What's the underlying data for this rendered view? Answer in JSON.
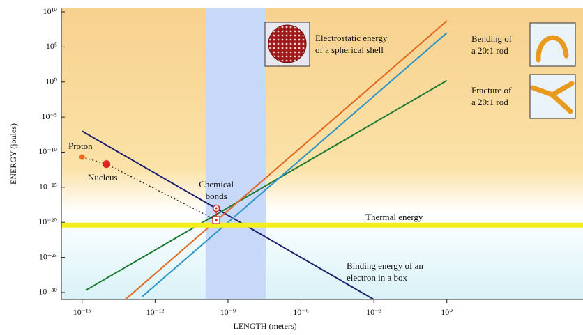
{
  "chart_data": {
    "type": "line",
    "xscale": "log",
    "yscale": "log",
    "xlabel": "LENGTH (meters)",
    "ylabel": "ENERGY (joules)",
    "xlim": [
      1.4e-16,
      400000.0
    ],
    "ylim": [
      1e-31,
      31600000000.0
    ],
    "xticks": [
      {
        "value": 1e-15,
        "label": "10⁻¹⁵"
      },
      {
        "value": 1e-12,
        "label": "10⁻¹²"
      },
      {
        "value": 1e-09,
        "label": "10⁻⁹"
      },
      {
        "value": 1e-06,
        "label": "10⁻⁶"
      },
      {
        "value": 0.001,
        "label": "10⁻³"
      },
      {
        "value": 1,
        "label": "10⁰"
      }
    ],
    "yticks": [
      {
        "value": 10000000000.0,
        "label": "10¹⁰"
      },
      {
        "value": 100000.0,
        "label": "10⁵"
      },
      {
        "value": 1,
        "label": "10⁰"
      },
      {
        "value": 1e-05,
        "label": "10⁻⁵"
      },
      {
        "value": 1e-10,
        "label": "10⁻¹⁰"
      },
      {
        "value": 1e-15,
        "label": "10⁻¹⁵"
      },
      {
        "value": 1e-20,
        "label": "10⁻²⁰"
      },
      {
        "value": 1e-25,
        "label": "10⁻²⁵"
      },
      {
        "value": 1e-30,
        "label": "10⁻³⁰"
      }
    ],
    "highlight_band": {
      "x": [
        1.2e-10,
        3.6e-08
      ],
      "color": "#c8d8f8"
    },
    "series": [
      {
        "label": [
          "Binding energy of an",
          "electron in a box"
        ],
        "color": "#1f1f6e",
        "x": [
          1e-15,
          0.001
        ],
        "values": [
          1e-07,
          1e-31
        ]
      },
      {
        "label": [
          "Fracture of",
          "a 20:1 rod"
        ],
        "color": "#1e7a32",
        "x": [
          1.4e-15,
          1
        ],
        "values": [
          2e-30,
          1.6
        ]
      },
      {
        "label": [
          "Electrostatic energy",
          "of a spherical shell"
        ],
        "color": "#e0661e",
        "x": [
          6e-14,
          1
        ],
        "values": [
          1e-31,
          500000000.0
        ]
      },
      {
        "label": [
          "Bending of",
          "a 20:1 rod"
        ],
        "color": "#2a93c8",
        "x": [
          3e-13,
          1
        ],
        "values": [
          2.7e-31,
          10000000.0
        ]
      },
      {
        "label": [
          "Thermal energy"
        ],
        "color": "#f4ee1a",
        "x": [
          1.4e-16,
          400000.0
        ],
        "values": [
          4e-21,
          4e-21
        ]
      }
    ],
    "points": [
      {
        "label": "Proton",
        "x": 1e-15,
        "y": 2e-11,
        "color": "#ee6a22"
      },
      {
        "label": "Nucleus",
        "x": 1e-14,
        "y": 2e-12,
        "color": "#e02020"
      }
    ],
    "chemical_bonds": {
      "label": [
        "Chemical",
        "bonds"
      ],
      "x": [
        3.3e-10,
        3.3e-10
      ],
      "values": [
        1e-18,
        2e-20
      ],
      "color": "#d42020"
    }
  }
}
